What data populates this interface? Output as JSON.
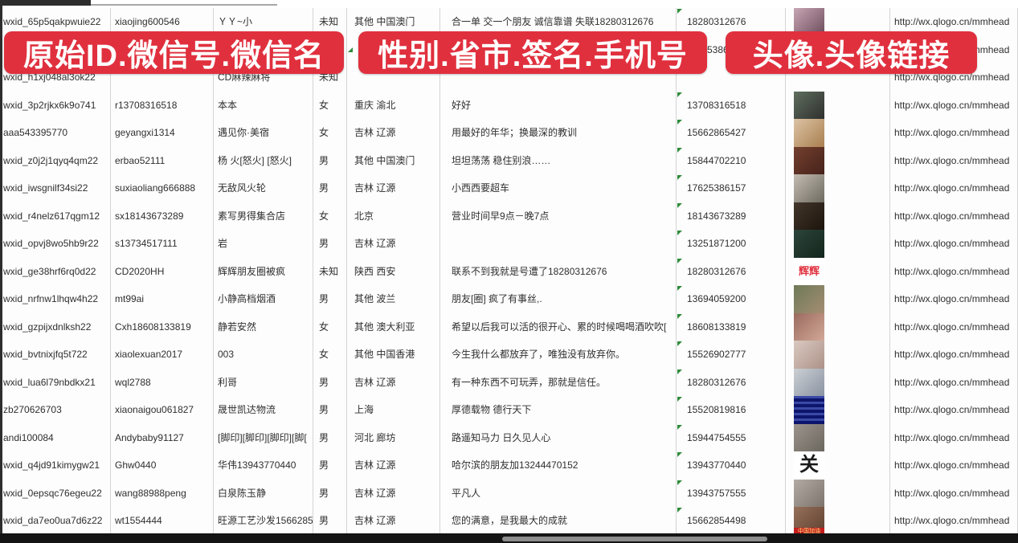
{
  "overlays": {
    "banner1": "原始ID.微信号.微信名",
    "banner2": "性别.省市.签名.手机号",
    "banner3": "头像.头像链接",
    "banner_color": "#e0303e"
  },
  "link_base": "http://wx.qlogo.cn/mmhead",
  "colors": {
    "grid": "#d4d4d4",
    "text": "#2f2f2f",
    "flag_green": "#2e8b3a",
    "scrollbar": "#8d8d8d"
  },
  "rows": [
    {
      "wxid": "wxid_65p5qakpwuie22",
      "wechat_id": "xiaojing600546",
      "name": "ＹＹ~小",
      "gender": "未知",
      "region": "其他 中国澳门",
      "signature": "合一单 交一个朋友 诚信靠谱 失联18280312676",
      "phone": "18280312676",
      "link": "http://wx.qlogo.cn/mmhead",
      "avatar": {
        "type": "photo",
        "c1": "#c9a6b4",
        "c2": "#6a4a5a"
      }
    },
    {
      "wxid": "",
      "wechat_id": "",
      "name": "",
      "gender": "",
      "region": "",
      "signature": "",
      "phone": "5386",
      "phone_pad": 38,
      "link": "http://wx.qlogo.cn/mmhead",
      "avatar": null
    },
    {
      "wxid": "wxid_h1xj048al3ok22",
      "wechat_id": "",
      "name": "CD麻辣麻将",
      "gender": "未知",
      "region": "",
      "signature": "",
      "phone": "",
      "link": "http://wx.qlogo.cn/mmhead",
      "avatar": null
    },
    {
      "wxid": "wxid_3p2rjkx6k9o741",
      "wechat_id": "r13708316518",
      "name": "本本",
      "gender": "女",
      "region": "重庆 渝北",
      "signature": "好好",
      "phone": "13708316518",
      "link": "http://wx.qlogo.cn/mmhead",
      "avatar": {
        "type": "photo",
        "c1": "#5f6f5d",
        "c2": "#2f2f2f"
      }
    },
    {
      "wxid": "aaa543395770",
      "wechat_id": "geyangxi1314",
      "name": "遇见你·美宿",
      "gender": "女",
      "region": "吉林 辽源",
      "signature": "用最好的年华；换最深的教训",
      "phone": "15662865427",
      "link": "http://wx.qlogo.cn/mmhead",
      "avatar": {
        "type": "photo",
        "c1": "#dcc3a4",
        "c2": "#a97f50"
      }
    },
    {
      "wxid": "wxid_z0j2j1qyq4qm22",
      "wechat_id": "erbao52111",
      "name": "杨 火[怒火] [怒火]",
      "gender": "男",
      "region": "其他 中国澳门",
      "signature": "坦坦荡荡 稳住别浪……",
      "phone": "15844702210",
      "link": "http://wx.qlogo.cn/mmhead",
      "avatar": {
        "type": "photo",
        "c1": "#74402f",
        "c2": "#46221a"
      }
    },
    {
      "wxid": "wxid_iwsgnilf34si22",
      "wechat_id": "suxiaoliang666888",
      "name": "无敌风火轮",
      "gender": "男",
      "region": "吉林 辽源",
      "signature": "小西西要超车",
      "phone": "17625386157",
      "link": "http://wx.qlogo.cn/mmhead",
      "avatar": {
        "type": "photo",
        "c1": "#c3bcb2",
        "c2": "#6e6a60"
      }
    },
    {
      "wxid": "wxid_r4nelz617qgm12",
      "wechat_id": "sx18143673289",
      "name": "素写男得集合店",
      "gender": "女",
      "region": "北京",
      "signature": "营业时间早9点－晚7点",
      "phone": "18143673289",
      "link": "http://wx.qlogo.cn/mmhead",
      "avatar": {
        "type": "photo",
        "c1": "#43362b",
        "c2": "#1c140c"
      }
    },
    {
      "wxid": "wxid_opvj8wo5hb9r22",
      "wechat_id": "s13734517111",
      "name": "岩",
      "gender": "男",
      "region": "吉林 辽源",
      "signature": "",
      "phone": "13251871200",
      "link": "http://wx.qlogo.cn/mmhead",
      "avatar": {
        "type": "photo",
        "c1": "#2c453a",
        "c2": "#14251c"
      }
    },
    {
      "wxid": "wxid_ge38hrf6rq0d22",
      "wechat_id": "CD2020HH",
      "name": "辉辉朋友圈被疯",
      "gender": "未知",
      "region": "陕西 西安",
      "signature": "联系不到我就是号遭了18280312676",
      "phone": "18280312676",
      "link": "http://wx.qlogo.cn/mmhead",
      "avatar": {
        "type": "text",
        "text": "辉辉",
        "fg": "#e0303e",
        "bg": "#ffffff"
      }
    },
    {
      "wxid": "wxid_nrfnw1lhqw4h22",
      "wechat_id": "mt99ai",
      "name": "小静高档烟酒",
      "gender": "男",
      "region": "其他 波兰",
      "signature": "朋友[圈] 疯了有事丝,.",
      "phone": "13694059200",
      "link": "http://wx.qlogo.cn/mmhead",
      "avatar": {
        "type": "photo",
        "c1": "#6d7a58",
        "c2": "#a58d72"
      }
    },
    {
      "wxid": "wxid_gzpijxdnlksh22",
      "wechat_id": "Cxh18608133819",
      "name": "静若安然",
      "gender": "女",
      "region": "其他 澳大利亚",
      "signature": "希望以后我可以活的很开心、累的时候喝喝酒吹吹[",
      "phone": "18608133819",
      "link": "http://wx.qlogo.cn/mmhead",
      "avatar": {
        "type": "photo",
        "c1": "#9a6a5e",
        "c2": "#d2a898"
      }
    },
    {
      "wxid": "wxid_bvtnixjfq5t722",
      "wechat_id": "xiaolexuan2017",
      "name": "003",
      "gender": "女",
      "region": "其他 中国香港",
      "signature": "今生我什么都放弃了，唯独没有放弃你。",
      "phone": "15526902777",
      "link": "http://wx.qlogo.cn/mmhead",
      "avatar": {
        "type": "photo",
        "c1": "#d9c9c1",
        "c2": "#ad9288"
      }
    },
    {
      "wxid": "wxid_lua6l79nbdkx21",
      "wechat_id": "wql2788",
      "name": "利哥",
      "gender": "男",
      "region": "吉林 辽源",
      "signature": "有一种东西不可玩弄，那就是信任。",
      "phone": "18280312676",
      "link": "http://wx.qlogo.cn/mmhead",
      "avatar": {
        "type": "photo",
        "c1": "#ccd0d4",
        "c2": "#8a93a2"
      }
    },
    {
      "wxid": "zb270626703",
      "wechat_id": "xiaonaigou061827",
      "name": "晟世凯达物流",
      "gender": "男",
      "region": "上海",
      "signature": "厚德载物 德行天下",
      "phone": "15520819816",
      "link": "http://wx.qlogo.cn/mmhead",
      "avatar": {
        "type": "qr",
        "c1": "#3a49a6"
      }
    },
    {
      "wxid": "andi100084",
      "wechat_id": "Andybaby91127",
      "name": "[脚印][脚印][脚印][脚[",
      "gender": "男",
      "region": "河北 廊坊",
      "signature": "路遥知马力 日久见人心",
      "phone": "15944754555",
      "link": "http://wx.qlogo.cn/mmhead",
      "avatar": {
        "type": "photo",
        "c1": "#9b948c",
        "c2": "#6b665e"
      }
    },
    {
      "wxid": "wxid_q4jd91kimygw21",
      "wechat_id": "Ghw0440",
      "name": "华伟13943770440",
      "gender": "男",
      "region": "吉林 辽源",
      "signature": "哈尔滨的朋友加13244470152",
      "phone": "13943770440",
      "link": "http://wx.qlogo.cn/mmhead",
      "avatar": {
        "type": "text",
        "text": "关",
        "fg": "#1a1a1a",
        "bg": "#ffffff",
        "big": true
      }
    },
    {
      "wxid": "wxid_0epsqc76egeu22",
      "wechat_id": "wang88988peng",
      "name": "白泉陈玉静",
      "gender": "男",
      "region": "吉林 辽源",
      "signature": "平凡人",
      "phone": "13943757555",
      "link": "http://wx.qlogo.cn/mmhead",
      "avatar": {
        "type": "photo",
        "c1": "#b3aba3",
        "c2": "#7d756d"
      }
    },
    {
      "wxid": "wxid_da7eo0ua7d6z22",
      "wechat_id": "wt1554444",
      "name": "旺源工艺沙发15662854",
      "gender": "男",
      "region": "吉林 辽源",
      "signature": "您的满意，是我最大的成就",
      "phone": "15662854498",
      "link": "http://wx.qlogo.cn/mmhead",
      "avatar": {
        "type": "photo-banner",
        "c1": "#96705a",
        "c2": "#5e4030",
        "label": "中国加油"
      }
    }
  ]
}
